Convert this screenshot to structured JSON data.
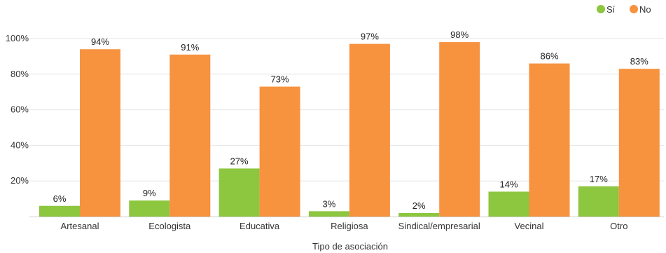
{
  "chart_data": {
    "type": "bar",
    "xlabel": "Tipo de asociación",
    "ylabel": "",
    "ylim": [
      0,
      100
    ],
    "yticks": [
      20,
      40,
      60,
      80,
      100
    ],
    "ytick_labels": [
      "20%",
      "40%",
      "60%",
      "80%",
      "100%"
    ],
    "grid": true,
    "legend_position": "top-right",
    "categories": [
      "Artesanal",
      "Ecologista",
      "Educativa",
      "Religiosa",
      "Sindical/empresarial",
      "Vecinal",
      "Otro"
    ],
    "series": [
      {
        "name": "Sí",
        "color": "#8dc63f",
        "values": [
          6,
          9,
          27,
          3,
          2,
          14,
          17
        ],
        "labels": [
          "6%",
          "9%",
          "27%",
          "3%",
          "2%",
          "14%",
          "17%"
        ]
      },
      {
        "name": "No",
        "color": "#f7923f",
        "values": [
          94,
          91,
          73,
          97,
          98,
          86,
          83
        ],
        "labels": [
          "94%",
          "91%",
          "73%",
          "97%",
          "98%",
          "86%",
          "83%"
        ]
      }
    ]
  }
}
